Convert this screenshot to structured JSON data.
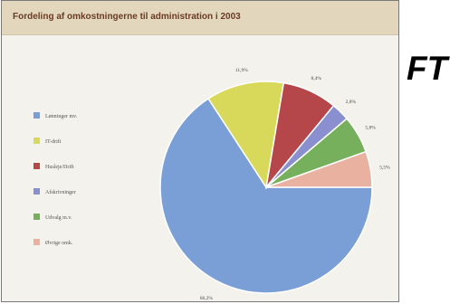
{
  "side_heading": "FT",
  "chart_data": {
    "type": "pie",
    "title": "Fordeling af omkostningerne til administration i 2003",
    "legend_position": "left",
    "slices": [
      {
        "label": "Lønninger mv.",
        "value": 66.2,
        "value_label": "66,2%",
        "color": "#7a9fd6"
      },
      {
        "label": "IT-drift",
        "value": 11.9,
        "value_label": "11,9%",
        "color": "#d8d85a"
      },
      {
        "label": "Husleje/Drift",
        "value": 8.4,
        "value_label": "8,4%",
        "color": "#b5464a"
      },
      {
        "label": "Afskrivninger",
        "value": 2.8,
        "value_label": "2,8%",
        "color": "#8a8fcf"
      },
      {
        "label": "Udvalg m.v.",
        "value": 5.8,
        "value_label": "5,8%",
        "color": "#76b05c"
      },
      {
        "label": "Øvrige omk.",
        "value": 5.5,
        "value_label": "5,5%",
        "color": "#e8b1a0"
      }
    ]
  }
}
